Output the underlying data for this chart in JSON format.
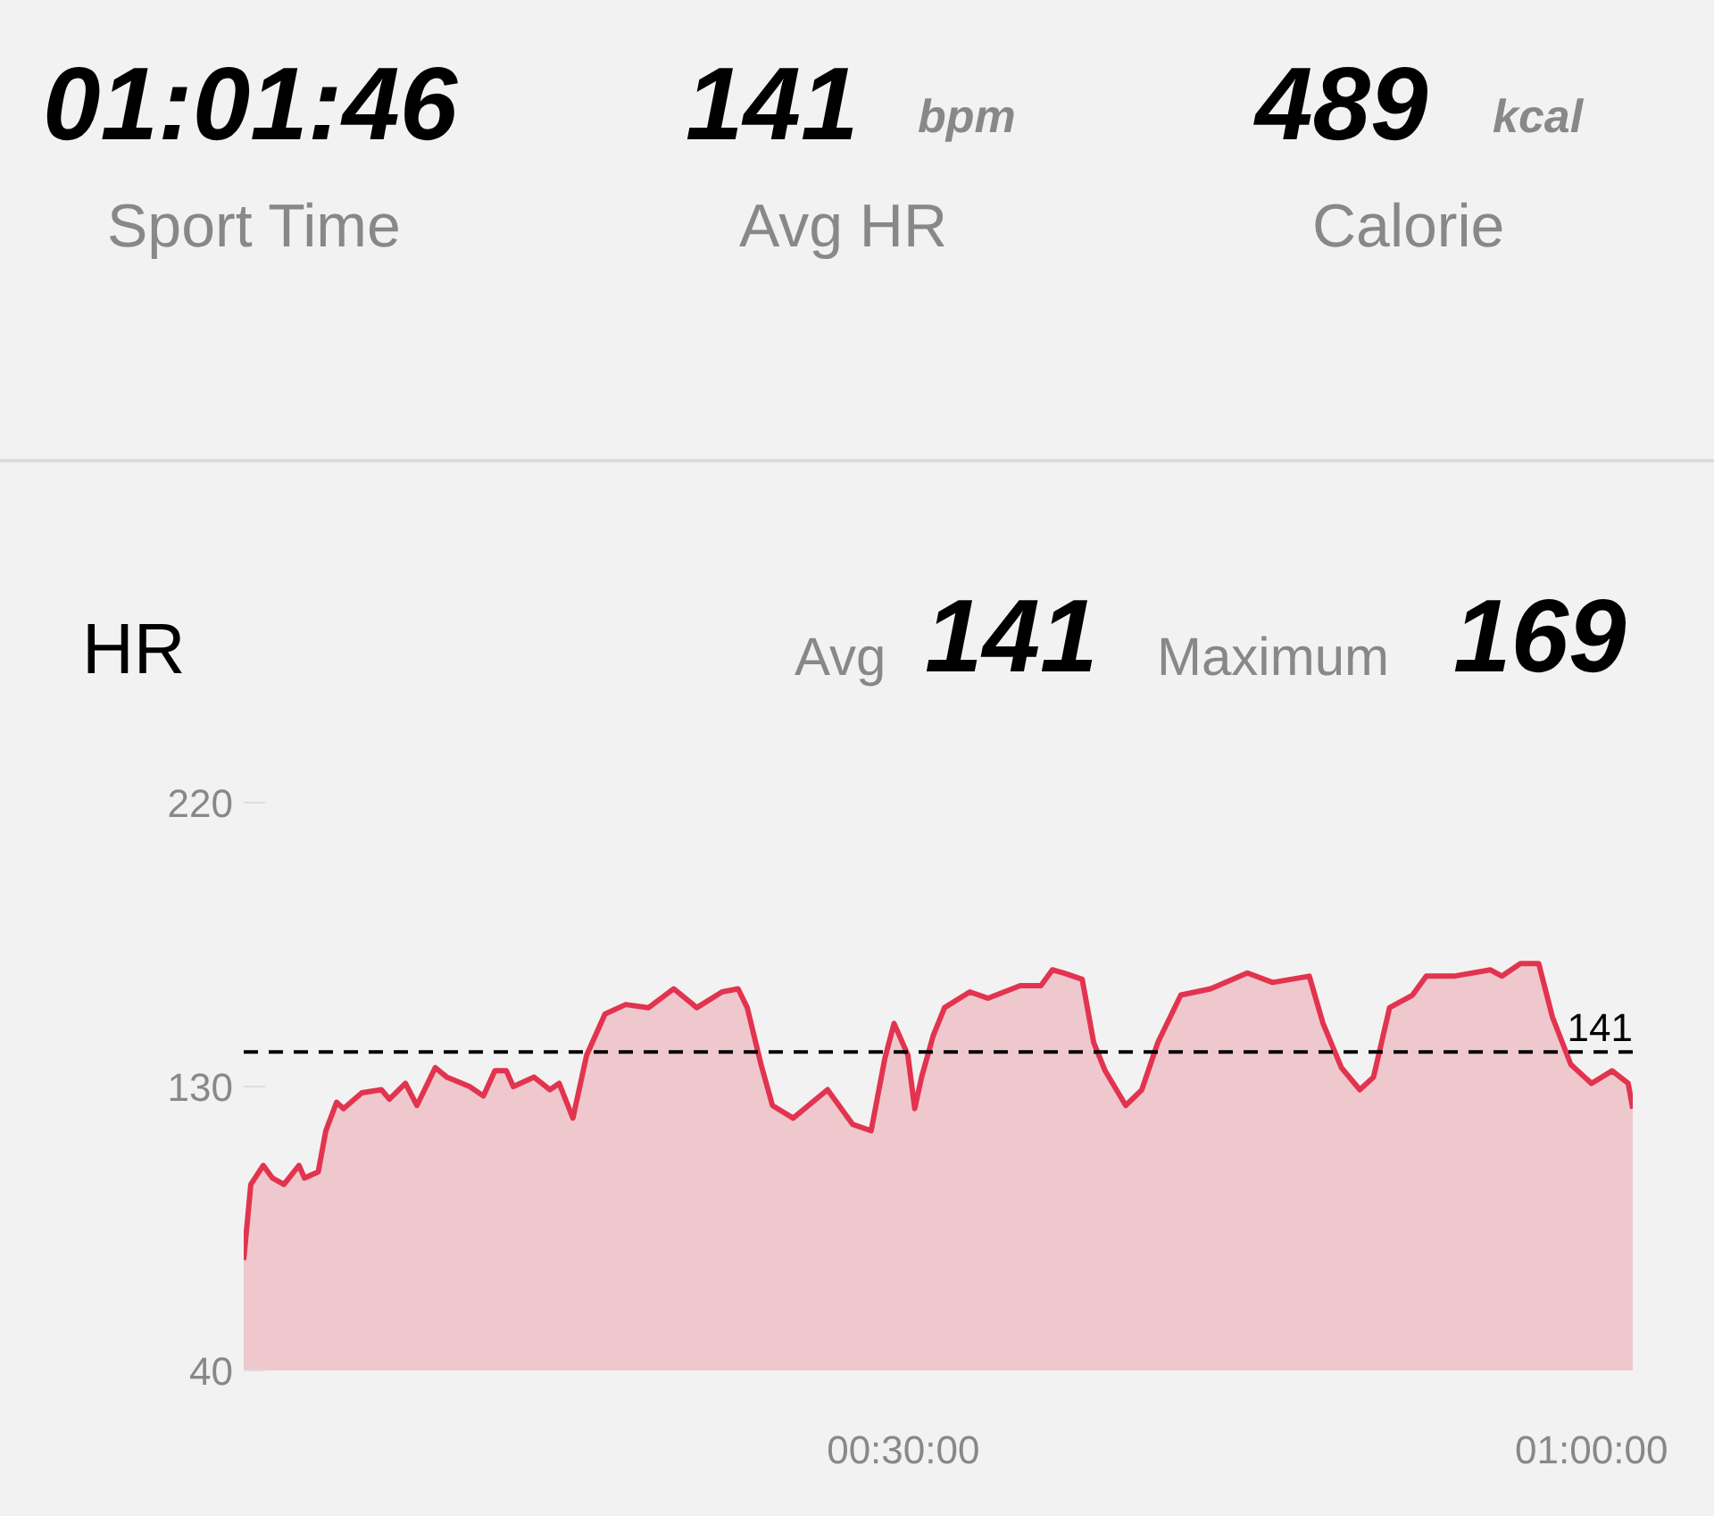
{
  "chart_data": {
    "type": "area",
    "title": "HR",
    "annotations": [
      "01:01:46",
      "Sport Time",
      "141",
      "bpm",
      "Avg HR",
      "489",
      "kcal",
      "Calorie",
      "Avg",
      "141",
      "Maximum",
      "169"
    ],
    "x": [
      1.25,
      1.56,
      2.1,
      2.5,
      3.0,
      3.66,
      3.9,
      4.5,
      4.83,
      5.3,
      5.6,
      6.4,
      7.25,
      7.6,
      8.3,
      8.8,
      9.6,
      10.1,
      11.1,
      11.7,
      12.2,
      12.7,
      13,
      13.9,
      14.6,
      15,
      15.6,
      16.2,
      17,
      17.9,
      18.9,
      20,
      21,
      22.1,
      22.8,
      23.2,
      23.8,
      24.3,
      25.2,
      26.7,
      27.8,
      28.6,
      29.2,
      29.6,
      30.2,
      30.5,
      30.8,
      31.3,
      31.8,
      32.9,
      33.7,
      35.1,
      36,
      36.5,
      37,
      37.8,
      38.3,
      38.8,
      39.7,
      40.4,
      41.1,
      42.1,
      43.4,
      45,
      46.1,
      47.7,
      48.3,
      49.1,
      49.9,
      50.5,
      51.2,
      52.2,
      52.8,
      54,
      55.6,
      56.1,
      56.9,
      57.7,
      58.3,
      59.1,
      60,
      60.9,
      61.6,
      61.8
    ],
    "series": [
      {
        "color": "#e2344f",
        "values": [
          75,
          99,
          105,
          101,
          99,
          105,
          101,
          103,
          116,
          125,
          123,
          128,
          129,
          126,
          131,
          124,
          136,
          133,
          130,
          127,
          135,
          135,
          130,
          133,
          129,
          131,
          120,
          140,
          153,
          156,
          155,
          161,
          155,
          160,
          161,
          155,
          137,
          124,
          120,
          129,
          118,
          116,
          139,
          150,
          140,
          123,
          133,
          146,
          155,
          160,
          158,
          162,
          162,
          167,
          166,
          164,
          144,
          135,
          124,
          129,
          144,
          159,
          161,
          166,
          163,
          165,
          150,
          136,
          129,
          133,
          155,
          159,
          165,
          165,
          167,
          165,
          169,
          169,
          152,
          137,
          131,
          135,
          131,
          123
        ]
      }
    ],
    "xlim": [
      1.25,
      61.8
    ],
    "xticks": [
      {
        "value": 30,
        "label": "00:30:00"
      },
      {
        "value": 60,
        "label": "01:00:00"
      }
    ],
    "ylim": [
      40,
      220
    ],
    "yticks": [
      40,
      130,
      220
    ],
    "ref_lines": [
      {
        "axis": "y",
        "value": 141,
        "label": "141",
        "color": "#000000",
        "line_style": "dashed"
      }
    ]
  }
}
